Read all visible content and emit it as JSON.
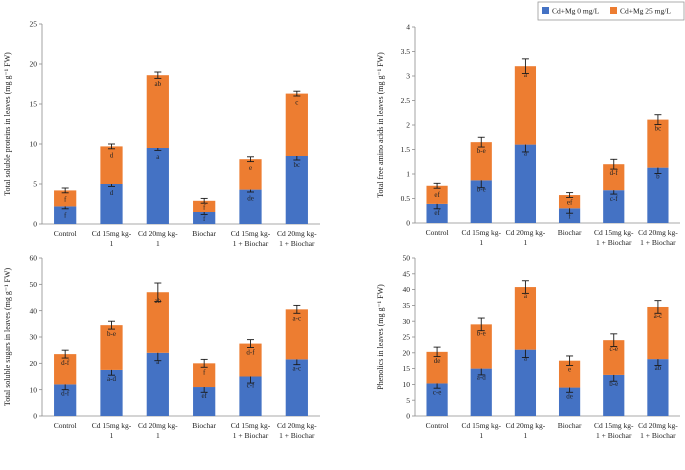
{
  "legend": {
    "series": [
      {
        "name": "Cd+Mg 0 mg/L",
        "color": "#4472C4"
      },
      {
        "name": "Cd+Mg 25 mg/L",
        "color": "#ED7D31"
      }
    ]
  },
  "chart_data": [
    {
      "type": "bar",
      "stacked": true,
      "title": "",
      "xlabel": "",
      "ylabel": "Total soluble proteins in leaves (mg g⁻¹ FW)",
      "ylim": [
        0,
        25
      ],
      "yticks": [
        "0",
        "5",
        "10",
        "15",
        "20",
        "25"
      ],
      "categories": [
        [
          "Control"
        ],
        [
          "Cd 15mg kg-",
          "1"
        ],
        [
          "Cd 20mg kg-",
          "1"
        ],
        [
          "Biochar"
        ],
        [
          "Cd 15mg kg-",
          "1 + Biochar"
        ],
        [
          "Cd 20mg kg-",
          "1 + Biochar"
        ]
      ],
      "series": [
        {
          "name": "Cd+Mg 0 mg/L",
          "values": [
            2.2,
            5.0,
            9.5,
            1.5,
            4.3,
            8.5
          ],
          "errors": [
            0.3,
            0.3,
            0.3,
            0.3,
            0.3,
            0.5
          ],
          "labels": [
            "f",
            "d",
            "a",
            "f",
            "de",
            "bc"
          ]
        },
        {
          "name": "Cd+Mg 25 mg/L",
          "values": [
            2.0,
            4.7,
            9.1,
            1.4,
            3.8,
            7.8
          ],
          "errors": [
            0.3,
            0.3,
            0.4,
            0.3,
            0.3,
            0.3
          ],
          "labels": [
            "f",
            "d",
            "ab",
            "f",
            "e",
            "c"
          ]
        }
      ]
    },
    {
      "type": "bar",
      "stacked": true,
      "title": "",
      "xlabel": "",
      "ylabel": "Total free amino acids in leaves (mg g⁻¹ FW)",
      "ylim": [
        0,
        4
      ],
      "yticks": [
        "0",
        "0.5",
        "1",
        "1.5",
        "2",
        "2.5",
        "3",
        "3.5",
        "4"
      ],
      "categories": [
        [
          "Control"
        ],
        [
          "Cd 15mg kg-",
          "1"
        ],
        [
          "Cd 20mg kg-",
          "1"
        ],
        [
          "Biochar"
        ],
        [
          "Cd 15mg kg-",
          "1 + Biochar"
        ],
        [
          "Cd 20mg kg-",
          "1 + Biochar"
        ]
      ],
      "series": [
        {
          "name": "Cd+Mg 0 mg/L",
          "values": [
            0.39,
            0.87,
            1.6,
            0.3,
            0.67,
            1.13
          ],
          "errors": [
            0.1,
            0.15,
            0.15,
            0.1,
            0.08,
            0.12
          ],
          "labels": [
            "ef",
            "b-e",
            "a",
            "f",
            "c-f",
            "b"
          ]
        },
        {
          "name": "Cd+Mg 25 mg/L",
          "values": [
            0.37,
            0.78,
            1.6,
            0.27,
            0.53,
            0.98
          ],
          "errors": [
            0.05,
            0.1,
            0.15,
            0.05,
            0.1,
            0.1
          ],
          "labels": [
            "ef",
            "b-e",
            "a",
            "ef",
            "d-f",
            "bc"
          ]
        }
      ]
    },
    {
      "type": "bar",
      "stacked": true,
      "title": "",
      "xlabel": "",
      "ylabel": "Total soluble sugars in leaves (mg g⁻¹ FW)",
      "ylim": [
        0,
        60
      ],
      "yticks": [
        "0",
        "10",
        "20",
        "30",
        "40",
        "50",
        "60"
      ],
      "categories": [
        [
          "Control"
        ],
        [
          "Cd 15mg kg-",
          "1"
        ],
        [
          "Cd 20mg kg-",
          "1"
        ],
        [
          "Biochar"
        ],
        [
          "Cd 15mg kg-",
          "1 + Biochar"
        ],
        [
          "Cd 20mg kg-",
          "1 + Biochar"
        ]
      ],
      "series": [
        {
          "name": "Cd+Mg 0 mg/L",
          "values": [
            12,
            17.5,
            24,
            11,
            15,
            21.5
          ],
          "errors": [
            2.0,
            2.0,
            3.0,
            2.0,
            2.5,
            2.0
          ],
          "labels": [
            "d-f",
            "a-d",
            "a",
            "ef",
            "c-f",
            "a-c"
          ]
        },
        {
          "name": "Cd+Mg 25 mg/L",
          "values": [
            11.5,
            17,
            23,
            9,
            12.5,
            19
          ],
          "errors": [
            1.5,
            1.5,
            3.5,
            1.5,
            1.5,
            1.5
          ],
          "labels": [
            "d-f",
            "b-e",
            "ab",
            "f",
            "d-f",
            "a-c"
          ]
        }
      ]
    },
    {
      "type": "bar",
      "stacked": true,
      "title": "",
      "xlabel": "",
      "ylabel": "Phenolics in leaves (mg g⁻¹ FW)",
      "ylim": [
        0,
        50
      ],
      "yticks": [
        "0",
        "5",
        "10",
        "15",
        "20",
        "25",
        "30",
        "35",
        "40",
        "45",
        "50"
      ],
      "categories": [
        [
          "Control"
        ],
        [
          "Cd 15mg kg-",
          "1"
        ],
        [
          "Cd 20mg kg-",
          "1"
        ],
        [
          "Biochar"
        ],
        [
          "Cd 15mg kg-",
          "1 + Biochar"
        ],
        [
          "Cd 20mg kg-",
          "1 + Biochar"
        ]
      ],
      "series": [
        {
          "name": "Cd+Mg 0 mg/L",
          "values": [
            10.3,
            15,
            21,
            9,
            13,
            18
          ],
          "errors": [
            1.5,
            2.0,
            2.5,
            1.5,
            2.0,
            2.0
          ],
          "labels": [
            "c-e",
            "a-d",
            "a",
            "de",
            "b-e",
            "ab"
          ]
        },
        {
          "name": "Cd+Mg 25 mg/L",
          "values": [
            10,
            14,
            19.8,
            8.5,
            11,
            16.5
          ],
          "errors": [
            1.5,
            2.0,
            2.0,
            1.5,
            2.0,
            2.0
          ],
          "labels": [
            "de",
            "b-e",
            "a",
            "e",
            "c-e",
            "a-c"
          ]
        }
      ]
    }
  ]
}
